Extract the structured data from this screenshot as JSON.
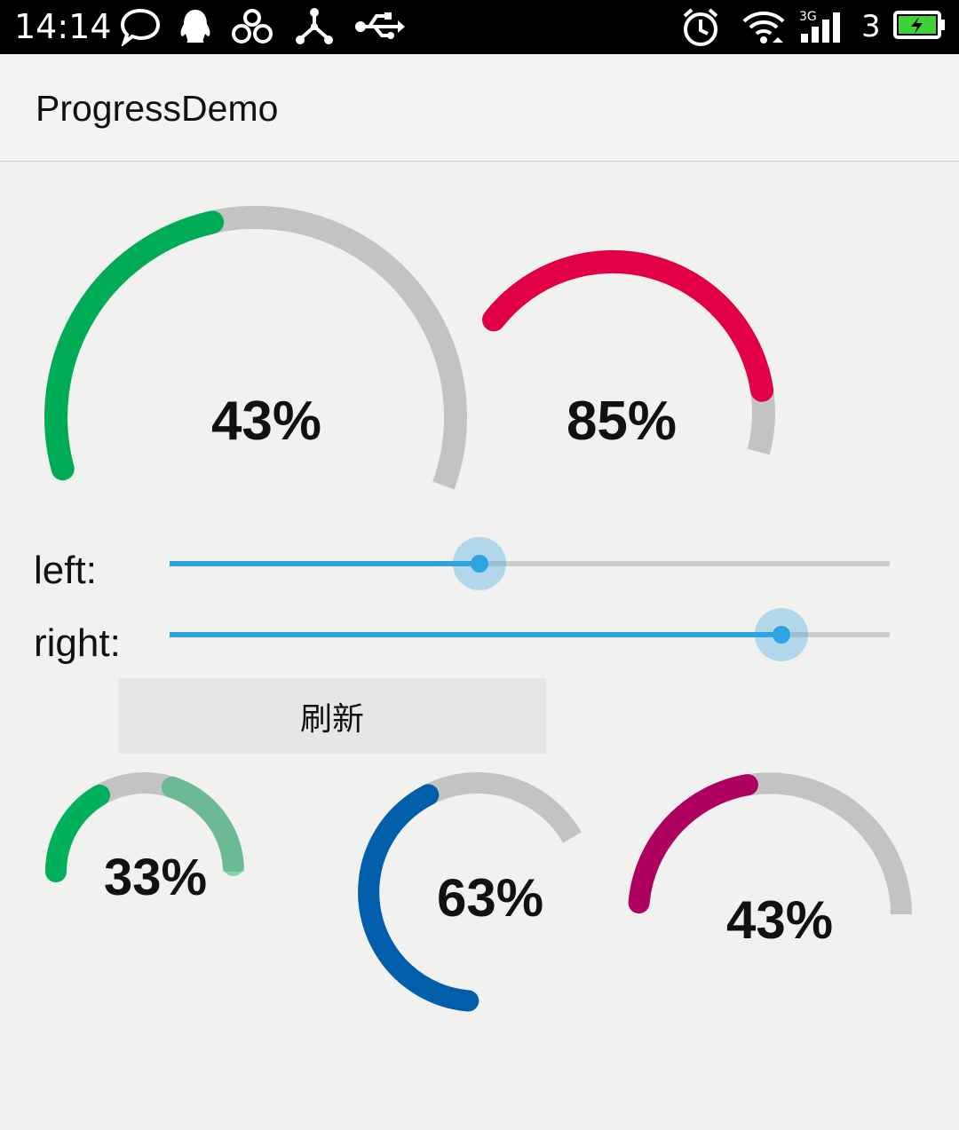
{
  "status_bar": {
    "time": "14:14",
    "network_label": "3",
    "icons": [
      "chat-bubble-icon",
      "qq-penguin-icon",
      "weibo-link-icon",
      "share-node-icon",
      "usb-icon",
      "alarm-clock-icon",
      "wifi-icon",
      "signal-3g-icon",
      "battery-charging-icon"
    ],
    "battery_color": "#3fd23a"
  },
  "app_bar": {
    "title": "ProgressDemo"
  },
  "gauges": [
    {
      "name": "gauge-left",
      "percent": 43,
      "label": "43%",
      "color": "#00ab55",
      "track": "#c3c3c3"
    },
    {
      "name": "gauge-right",
      "percent": 85,
      "label": "85%",
      "color": "#e10048",
      "track": "#c3c3c3"
    },
    {
      "name": "gauge-small-green",
      "percent": 33,
      "label": "33%",
      "color": "#00b05a",
      "track": "#c3c3c3"
    },
    {
      "name": "gauge-blue",
      "percent": 63,
      "label": "63%",
      "color": "#005eab",
      "track": "#c3c3c3"
    },
    {
      "name": "gauge-magenta",
      "percent": 43,
      "label": "43%",
      "color": "#ae005e",
      "track": "#c3c3c3"
    }
  ],
  "controls": {
    "left": {
      "label": "left:",
      "value": 43
    },
    "right": {
      "label": "right:",
      "value": 85
    },
    "accent": "#2fa3e0",
    "refresh_label": "刷新"
  }
}
